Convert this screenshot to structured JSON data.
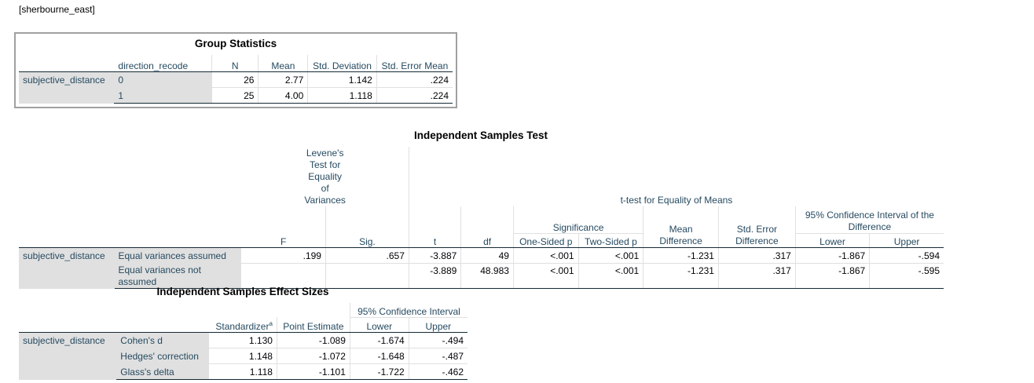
{
  "dataset": "[sherbourne_east]",
  "group_statistics": {
    "title": "Group Statistics",
    "headers": [
      "direction_recode",
      "N",
      "Mean",
      "Std. Deviation",
      "Std. Error Mean"
    ],
    "row_label": "subjective_distance",
    "rows": [
      {
        "group": "0",
        "n": "26",
        "mean": "2.77",
        "sd": "1.142",
        "sem": ".224"
      },
      {
        "group": "1",
        "n": "25",
        "mean": "4.00",
        "sd": "1.118",
        "sem": ".224"
      }
    ]
  },
  "independent_test": {
    "title": "Independent Samples Test",
    "levene_header": "Levene's Test for Equality of Variances",
    "ttest_header": "t-test for Equality of Means",
    "significance_header": "Significance",
    "ci_header": "95% Confidence Interval of the Difference",
    "cols": {
      "f": "F",
      "sig": "Sig.",
      "t": "t",
      "df": "df",
      "one_sided": "One-Sided p",
      "two_sided": "Two-Sided p",
      "mean_diff": "Mean Difference",
      "se_diff": "Std. Error Difference",
      "lower": "Lower",
      "upper": "Upper"
    },
    "row_label": "subjective_distance",
    "rows": [
      {
        "label": "Equal variances assumed",
        "f": ".199",
        "sig": ".657",
        "t": "-3.887",
        "df": "49",
        "one": "<.001",
        "two": "<.001",
        "md": "-1.231",
        "se": ".317",
        "lower": "-1.867",
        "upper": "-.594"
      },
      {
        "label": "Equal variances not assumed",
        "f": "",
        "sig": "",
        "t": "-3.889",
        "df": "48.983",
        "one": "<.001",
        "two": "<.001",
        "md": "-1.231",
        "se": ".317",
        "lower": "-1.867",
        "upper": "-.595"
      }
    ]
  },
  "effect_sizes": {
    "title": "Independent Samples Effect Sizes",
    "ci_header": "95% Confidence Interval",
    "cols": {
      "standardizer": "Standardizer",
      "standardizer_sup": "a",
      "point": "Point Estimate",
      "lower": "Lower",
      "upper": "Upper"
    },
    "row_label": "subjective_distance",
    "rows": [
      {
        "label": "Cohen's d",
        "std": "1.130",
        "point": "-1.089",
        "lower": "-1.674",
        "upper": "-.494"
      },
      {
        "label": "Hedges' correction",
        "std": "1.148",
        "point": "-1.072",
        "lower": "-1.648",
        "upper": "-.487"
      },
      {
        "label": "Glass's delta",
        "std": "1.118",
        "point": "-1.101",
        "lower": "-1.722",
        "upper": "-.462"
      }
    ]
  }
}
